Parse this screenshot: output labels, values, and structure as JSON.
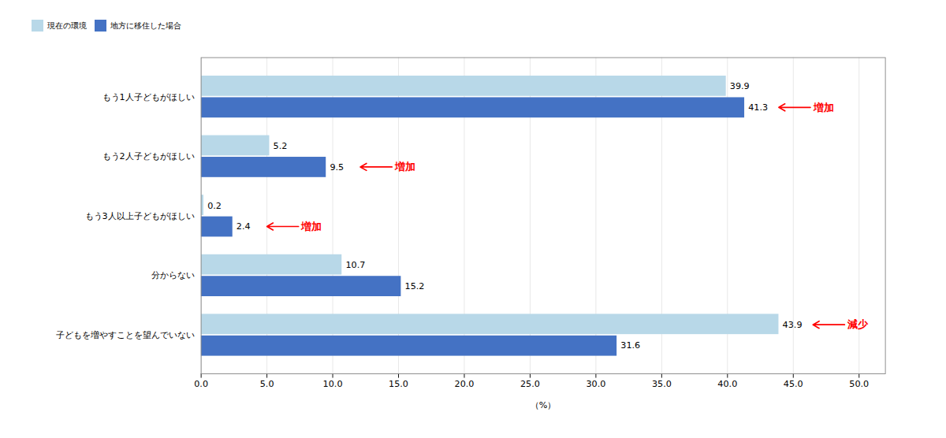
{
  "chart_data": {
    "type": "bar",
    "orientation": "horizontal",
    "categories": [
      "子どもを増やすことを望んでいない",
      "分からない",
      "もう3人以上子どもがほしい",
      "もう2人子どもがほしい",
      "もう1人子どもがほしい"
    ],
    "series": [
      {
        "name": "現在の環境",
        "color": "#b8d8e8",
        "values": [
          43.9,
          10.7,
          0.2,
          5.2,
          39.9
        ]
      },
      {
        "name": "地方に移住した場合",
        "color": "#4472c4",
        "values": [
          31.6,
          15.2,
          2.4,
          9.5,
          41.3
        ]
      }
    ],
    "xlabel": "（%）",
    "xlim": [
      0,
      52
    ],
    "xticks": [
      {
        "value": 0,
        "label": "0.0"
      },
      {
        "value": 5,
        "label": "5.0"
      },
      {
        "value": 10,
        "label": "10.0"
      },
      {
        "value": 15,
        "label": "15.0"
      },
      {
        "value": 20,
        "label": "20.0"
      },
      {
        "value": 25,
        "label": "25.0"
      },
      {
        "value": 30,
        "label": "30.0"
      },
      {
        "value": 35,
        "label": "35.0"
      },
      {
        "value": 40,
        "label": "40.0"
      },
      {
        "value": 45,
        "label": "45.0"
      },
      {
        "value": 50,
        "label": "50.0"
      }
    ],
    "grid": "x",
    "data_labels": true,
    "legend": "top",
    "annotations": [
      {
        "text": "増加",
        "category": "もう1人子どもがほしい",
        "series": "地方に移住した場合"
      },
      {
        "text": "増加",
        "category": "もう2人子どもがほしい",
        "series": "地方に移住した場合"
      },
      {
        "text": "増加",
        "category": "もう3人以上子どもがほしい",
        "series": "地方に移住した場合"
      },
      {
        "text": "減少",
        "category": "子どもを増やすことを望んでいない",
        "series": "現在の環境"
      }
    ]
  }
}
